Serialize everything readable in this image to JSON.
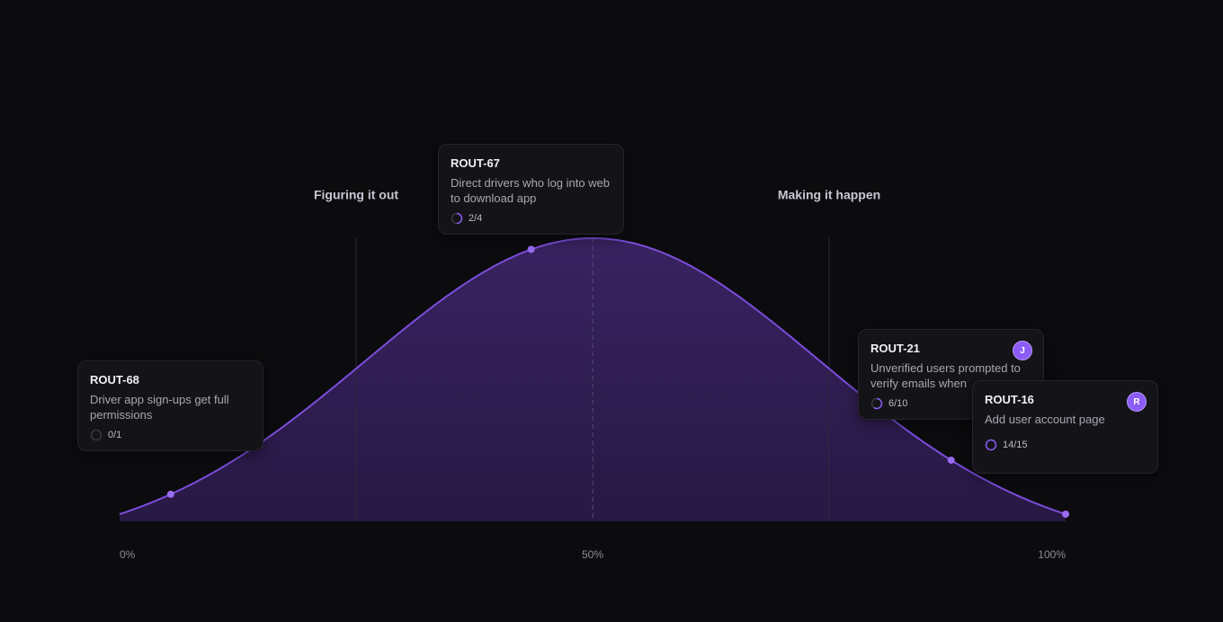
{
  "chart_data": {
    "type": "hill",
    "xlim": [
      0,
      100
    ],
    "xticks": [
      {
        "value": 0,
        "label": "0%"
      },
      {
        "value": 50,
        "label": "50%"
      },
      {
        "value": 100,
        "label": "100%"
      }
    ],
    "phases": [
      {
        "label": "Figuring it out",
        "x": 25
      },
      {
        "label": "Making it happen",
        "x": 75
      }
    ],
    "color": "#7c4ddb",
    "items": [
      {
        "id": "ROUT-68",
        "title": "Driver app sign-ups get full permissions",
        "progress": "0/1",
        "x": 5.4
      },
      {
        "id": "ROUT-67",
        "title": "Direct drivers who log into web to download app",
        "progress": "2/4",
        "x": 43.5
      },
      {
        "id": "ROUT-21",
        "title": "Unverified users prompted to verify emails when",
        "progress": "6/10",
        "avatar": "J",
        "x": 87.9
      },
      {
        "id": "ROUT-16",
        "title": "Add user account page",
        "progress": "14/15",
        "avatar": "R",
        "x": 100
      }
    ]
  }
}
